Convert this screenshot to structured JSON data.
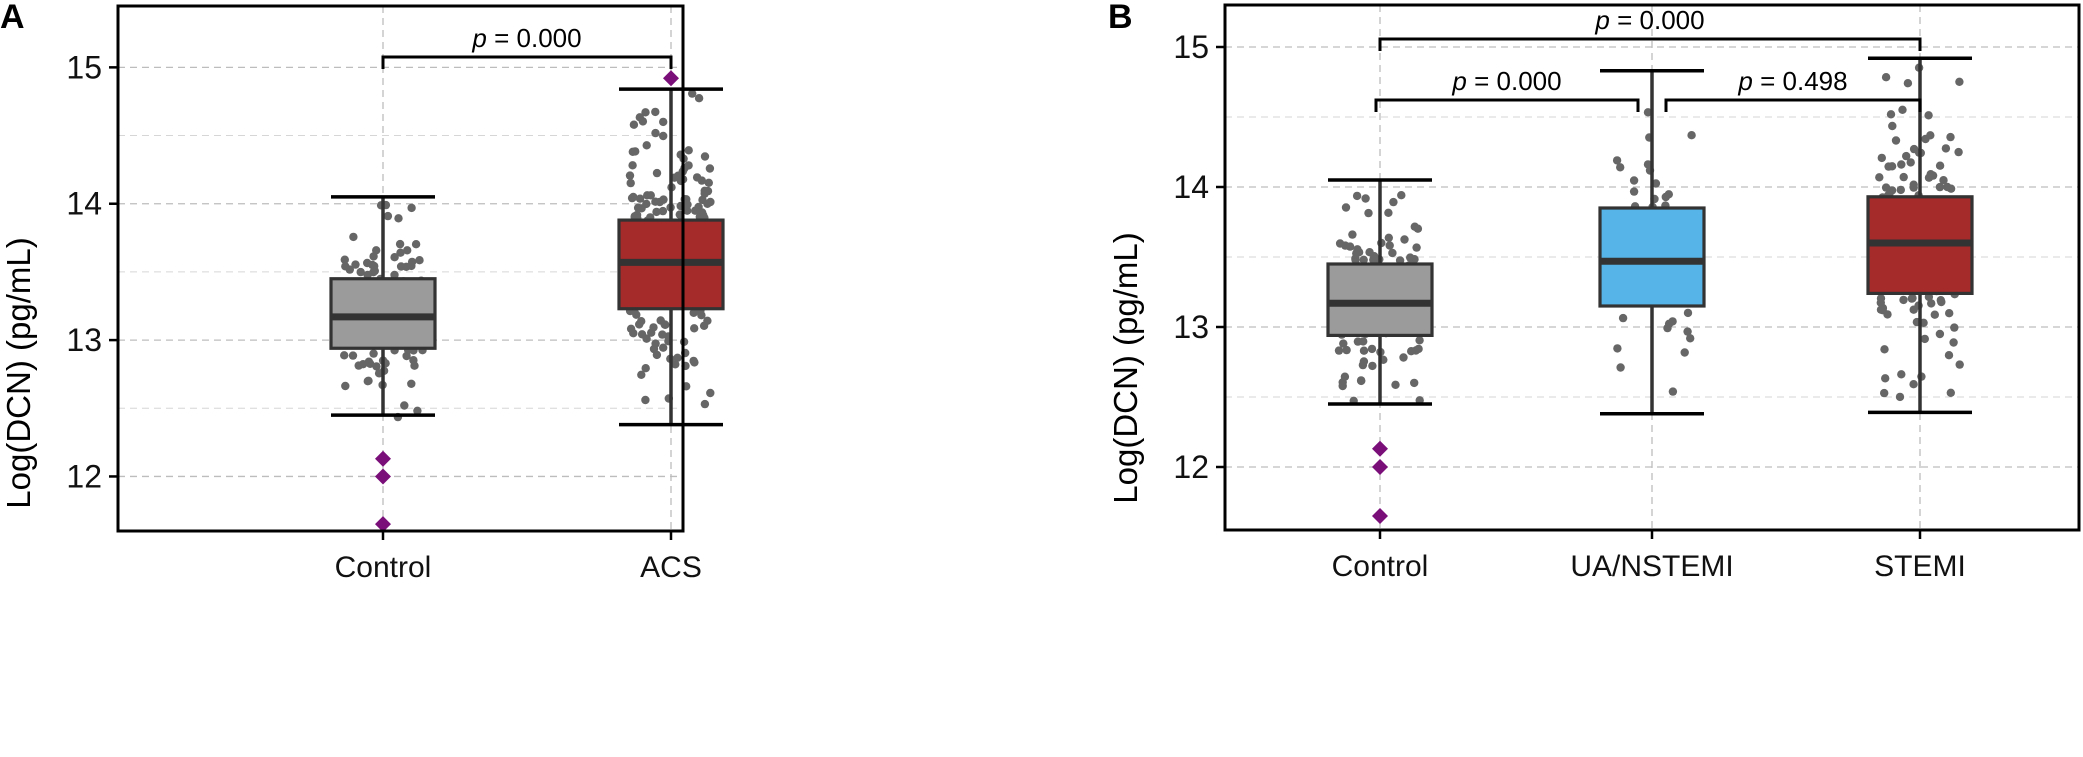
{
  "figure": {
    "colors": {
      "control": "#9b9b9b",
      "acs": "#a52a2a",
      "ua_nstemi": "#56b4e9",
      "stemi": "#a52a2a",
      "jitter_points": "#666666",
      "outliers": "#7a0f7a",
      "grid": "#bdbdbd"
    }
  },
  "chart_data": [
    {
      "type": "box",
      "panel_label": "A",
      "ylabel": "Log(DCN) (pg/mL)",
      "ylim": [
        11.6,
        15.45
      ],
      "yticks": [
        {
          "value": 12,
          "label": "12"
        },
        {
          "value": 13,
          "label": "13"
        },
        {
          "value": 14,
          "label": "14"
        },
        {
          "value": 15,
          "label": "15"
        }
      ],
      "minor_grid": [
        12.5,
        13.5,
        14.5
      ],
      "grid": true,
      "categories": [
        "Control",
        "ACS"
      ],
      "groups": [
        {
          "name": "Control",
          "color_key": "control",
          "whisker_low": 12.45,
          "q1": 12.94,
          "median": 13.17,
          "q3": 13.45,
          "whisker_high": 14.05,
          "outliers": [
            12.13,
            12.0,
            11.65
          ],
          "jitter_range": [
            12.4,
            14.0
          ],
          "n_points": 130,
          "seed": 11
        },
        {
          "name": "ACS",
          "color_key": "acs",
          "whisker_low": 12.38,
          "q1": 13.23,
          "median": 13.57,
          "q3": 13.88,
          "whisker_high": 14.84,
          "outliers": [
            14.92
          ],
          "jitter_range": [
            12.38,
            14.9
          ],
          "n_points": 200,
          "seed": 23
        }
      ],
      "comparisons": [
        {
          "from": 0,
          "to": 1,
          "label_p": "p",
          "label_rest": " = 0.000",
          "level": 0
        }
      ]
    },
    {
      "type": "box",
      "panel_label": "B",
      "ylabel": "Log(DCN) (pg/mL)",
      "ylim": [
        11.55,
        15.3
      ],
      "yticks": [
        {
          "value": 12,
          "label": "12"
        },
        {
          "value": 13,
          "label": "13"
        },
        {
          "value": 14,
          "label": "14"
        },
        {
          "value": 15,
          "label": "15"
        }
      ],
      "minor_grid": [
        12.5,
        13.5,
        14.5
      ],
      "grid": true,
      "categories": [
        "Control",
        "UA/NSTEMI",
        "STEMI"
      ],
      "groups": [
        {
          "name": "Control",
          "color_key": "control",
          "whisker_low": 12.45,
          "q1": 12.94,
          "median": 13.17,
          "q3": 13.45,
          "whisker_high": 14.05,
          "outliers": [
            12.13,
            12.0,
            11.65
          ],
          "jitter_range": [
            12.4,
            14.0
          ],
          "n_points": 130,
          "seed": 31
        },
        {
          "name": "UA/NSTEMI",
          "color_key": "ua_nstemi",
          "whisker_low": 12.38,
          "q1": 13.15,
          "median": 13.47,
          "q3": 13.85,
          "whisker_high": 14.83,
          "outliers": [],
          "jitter_range": [
            12.38,
            14.8
          ],
          "n_points": 55,
          "seed": 47
        },
        {
          "name": "STEMI",
          "color_key": "stemi",
          "whisker_low": 12.39,
          "q1": 13.24,
          "median": 13.6,
          "q3": 13.93,
          "whisker_high": 14.92,
          "outliers": [],
          "jitter_range": [
            12.39,
            14.92
          ],
          "n_points": 150,
          "seed": 59
        }
      ],
      "comparisons": [
        {
          "from": 0,
          "to": 2,
          "label_p": "p",
          "label_rest": " = 0.000",
          "level": 1
        },
        {
          "from": 0,
          "to": 1,
          "label_p": "p",
          "label_rest": " = 0.000",
          "level": 0
        },
        {
          "from": 1,
          "to": 2,
          "label_p": "p",
          "label_rest": " = 0.498",
          "level": 0
        }
      ]
    }
  ]
}
